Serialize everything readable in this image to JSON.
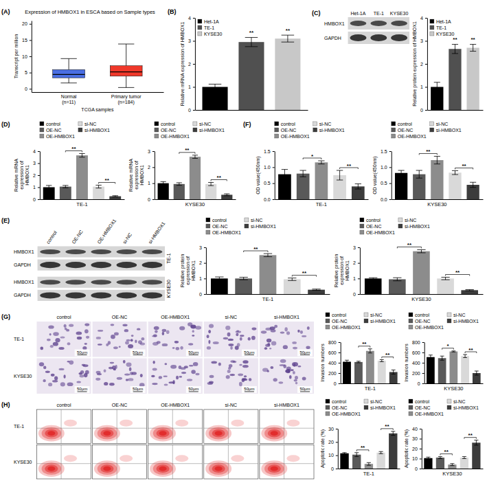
{
  "chart_data": [
    {
      "panel": "(A)",
      "type": "box",
      "title": "Expression of HMBOX1 in ESCA based on Sample types",
      "x_label": "TCGA samples",
      "y_label": "Transcript per million",
      "categories": [
        "Normal (n=11)",
        "Primary tumor (n=184)"
      ],
      "boxes": [
        {
          "min": 1.8,
          "q1": 3.4,
          "median": 4.4,
          "q3": 5.9,
          "max": 9.3
        },
        {
          "min": 0.4,
          "q1": 3.9,
          "median": 5.2,
          "q3": 7.1,
          "max": 13.8
        }
      ],
      "colors": [
        "#4a6fe3",
        "#f0382a"
      ],
      "ylim": [
        -1,
        21
      ],
      "yticks": [
        0,
        5,
        10,
        15,
        20
      ]
    },
    {
      "panel": "(B)",
      "type": "bar",
      "y_label": "Relative mRNA expression of HMBOX1",
      "categories": [
        "Het-1A",
        "TE-1",
        "KYSE30"
      ],
      "values": [
        1,
        2.95,
        3.1
      ],
      "error": [
        0.12,
        0.2,
        0.15
      ],
      "colors": [
        "#000000",
        "#505050",
        "#c8c8c8"
      ],
      "ylim": [
        0,
        4
      ],
      "yticks": [
        0,
        1,
        2,
        3,
        4
      ],
      "legend": "top-left",
      "tick_labels": "y",
      "significance": [
        {
          "bars": [
            1
          ],
          "label": "**"
        },
        {
          "bars": [
            2
          ],
          "label": "**"
        }
      ]
    },
    {
      "type": "bar",
      "y_label": "Relative protein expression of HMBOX1",
      "categories": [
        "Het-1A",
        "TE-1",
        "KYSE30"
      ],
      "values": [
        1,
        2.65,
        2.7
      ],
      "error": [
        0.2,
        0.2,
        0.15
      ],
      "colors": [
        "#000000",
        "#505050",
        "#c8c8c8"
      ],
      "ylim": [
        0,
        4
      ],
      "yticks": [
        0,
        1,
        2,
        3,
        4
      ],
      "legend": "top-left",
      "tick_labels": "y",
      "significance": [
        {
          "bars": [
            1
          ],
          "label": "**"
        },
        {
          "bars": [
            2
          ],
          "label": "**"
        }
      ]
    },
    {
      "panel": "(D)",
      "type": "bar",
      "y_label": "Relative mRNA expression of HMBOX1",
      "x_label": "TE-1",
      "categories": [
        "control",
        "OE-NC",
        "OE-HMBOX1",
        "si-NC",
        "si-HMBOX1"
      ],
      "values": [
        1,
        1.05,
        3.65,
        1.05,
        0.25
      ],
      "error": [
        0.15,
        0.1,
        0.15,
        0.12,
        0.05
      ],
      "colors": [
        "#000000",
        "#595959",
        "#8c8c8c",
        "#d9d9d9",
        "#3c3c3c"
      ],
      "ylim": [
        0,
        4
      ],
      "yticks": [
        0,
        1,
        2,
        3,
        4
      ],
      "legend": "top",
      "tick_labels": "y",
      "significance": [
        {
          "bars": [
            1,
            2
          ],
          "label": "**"
        },
        {
          "bars": [
            3,
            4
          ],
          "label": "**"
        }
      ]
    },
    {
      "type": "bar",
      "y_label": "Relative mRNA expression of HMBOX1",
      "x_label": "KYSE30",
      "categories": [
        "control",
        "OE-NC",
        "OE-HMBOX1",
        "si-NC",
        "si-HMBOX1"
      ],
      "values": [
        1,
        0.95,
        2.65,
        0.95,
        0.28
      ],
      "error": [
        0.1,
        0.08,
        0.1,
        0.1,
        0.06
      ],
      "colors": [
        "#000000",
        "#595959",
        "#8c8c8c",
        "#d9d9d9",
        "#3c3c3c"
      ],
      "ylim": [
        0,
        3
      ],
      "yticks": [
        0,
        1,
        2,
        3
      ],
      "legend": "top",
      "tick_labels": "y",
      "significance": [
        {
          "bars": [
            1,
            2
          ],
          "label": "**"
        },
        {
          "bars": [
            3,
            4
          ],
          "label": "**"
        }
      ]
    },
    {
      "panel": "(F)",
      "type": "bar",
      "y_label": "OD value(450nm)",
      "x_label": "TE-1",
      "categories": [
        "control",
        "OE-NC",
        "OE-HMBOX1",
        "si-NC",
        "si-HMBOX1"
      ],
      "values": [
        0.78,
        0.8,
        1.15,
        0.75,
        0.4
      ],
      "error": [
        0.15,
        0.1,
        0.05,
        0.15,
        0.08
      ],
      "colors": [
        "#000000",
        "#595959",
        "#8c8c8c",
        "#d9d9d9",
        "#3c3c3c"
      ],
      "ylim": [
        0,
        1.5
      ],
      "yticks": [
        {
          "value": 0,
          "label": "0.0"
        },
        0.5,
        {
          "value": 1,
          "label": "1.0"
        },
        1.5
      ],
      "legend": "top",
      "tick_labels": "y",
      "significance": [
        {
          "bars": [
            1,
            2
          ],
          "label": "*"
        },
        {
          "bars": [
            3,
            4
          ],
          "label": "**"
        }
      ]
    },
    {
      "type": "bar",
      "y_label": "OD value(450nm)",
      "x_label": "KYSE30",
      "categories": [
        "control",
        "OE-NC",
        "OE-HMBOX1",
        "si-NC",
        "si-HMBOX1"
      ],
      "values": [
        0.82,
        0.78,
        1.22,
        0.83,
        0.45
      ],
      "error": [
        0.08,
        0.12,
        0.12,
        0.06,
        0.08
      ],
      "colors": [
        "#000000",
        "#595959",
        "#8c8c8c",
        "#d9d9d9",
        "#3c3c3c"
      ],
      "ylim": [
        0,
        1.5
      ],
      "yticks": [
        {
          "value": 0,
          "label": "0.0"
        },
        0.5,
        {
          "value": 1,
          "label": "1.0"
        },
        1.5
      ],
      "legend": "top",
      "tick_labels": "y",
      "significance": [
        {
          "bars": [
            1,
            2
          ],
          "label": "**"
        },
        {
          "bars": [
            3,
            4
          ],
          "label": "**"
        }
      ]
    },
    {
      "type": "bar",
      "y_label": "Relative protein expression of HMBOX1",
      "x_label": "TE-1",
      "categories": [
        "control",
        "OE-NC",
        "OE-HMBOX1",
        "si-NC",
        "si-HMBOX1"
      ],
      "values": [
        1,
        1,
        2.5,
        0.95,
        0.28
      ],
      "error": [
        0.1,
        0.08,
        0.1,
        0.08,
        0.04
      ],
      "colors": [
        "#000000",
        "#595959",
        "#8c8c8c",
        "#d9d9d9",
        "#3c3c3c"
      ],
      "ylim": [
        0,
        3
      ],
      "yticks": [
        0,
        1,
        2,
        3
      ],
      "legend": "top",
      "tick_labels": "y",
      "significance": [
        {
          "bars": [
            1,
            2
          ],
          "label": "**"
        },
        {
          "bars": [
            3,
            4
          ],
          "label": "**"
        }
      ]
    },
    {
      "type": "bar",
      "y_label": "Relative protein expression of HMBOX1",
      "x_label": "KYSE30",
      "categories": [
        "control",
        "OE-NC",
        "OE-HMBOX1",
        "si-NC",
        "si-HMBOX1"
      ],
      "values": [
        1,
        0.95,
        2.75,
        1,
        0.25
      ],
      "error": [
        0.05,
        0.1,
        0.1,
        0.08,
        0.04
      ],
      "colors": [
        "#000000",
        "#595959",
        "#8c8c8c",
        "#d9d9d9",
        "#3c3c3c"
      ],
      "ylim": [
        0,
        3
      ],
      "yticks": [
        0,
        1,
        2,
        3
      ],
      "legend": "top",
      "tick_labels": "y",
      "significance": [
        {
          "bars": [
            1,
            2
          ],
          "label": "**"
        },
        {
          "bars": [
            3,
            4
          ],
          "label": "**"
        }
      ]
    },
    {
      "type": "bar",
      "y_label": "Invasion numbers",
      "x_label": "TE-1",
      "categories": [
        "control",
        "OE-NC",
        "OE-HMBOX1",
        "si-NC",
        "si-HMBOX1"
      ],
      "values": [
        420,
        415,
        630,
        440,
        220
      ],
      "error": [
        30,
        15,
        40,
        20,
        40
      ],
      "colors": [
        "#000000",
        "#595959",
        "#8c8c8c",
        "#d9d9d9",
        "#3c3c3c"
      ],
      "ylim": [
        0,
        800
      ],
      "yticks": [
        0,
        200,
        400,
        600,
        800
      ],
      "legend": "top",
      "tick_labels": "y",
      "significance": [
        {
          "bars": [
            1,
            2
          ],
          "label": "**"
        },
        {
          "bars": [
            3,
            4
          ],
          "label": "**"
        }
      ]
    },
    {
      "type": "bar",
      "y_label": "Invasion numbers",
      "x_label": "KYSE30",
      "categories": [
        "control",
        "OE-NC",
        "OE-HMBOX1",
        "si-NC",
        "si-HMBOX1"
      ],
      "values": [
        510,
        490,
        620,
        530,
        200
      ],
      "error": [
        40,
        40,
        10,
        30,
        40
      ],
      "colors": [
        "#000000",
        "#595959",
        "#8c8c8c",
        "#d9d9d9",
        "#3c3c3c"
      ],
      "ylim": [
        0,
        800
      ],
      "yticks": [
        0,
        200,
        400,
        600,
        800
      ],
      "legend": "top",
      "tick_labels": "y",
      "significance": [
        {
          "bars": [
            1,
            2
          ],
          "label": "*"
        },
        {
          "bars": [
            3,
            4
          ],
          "label": "**"
        }
      ]
    },
    {
      "type": "bar",
      "y_label": "Apoptotic rate (%)",
      "x_label": "TE-1",
      "categories": [
        "control",
        "OE-NC",
        "OE-HMBOX1",
        "si-NC",
        "si-HMBOX1"
      ],
      "values": [
        11.5,
        10.5,
        3.5,
        12,
        26.5
      ],
      "error": [
        0.5,
        1.5,
        1,
        0.8,
        1.5
      ],
      "colors": [
        "#000000",
        "#595959",
        "#8c8c8c",
        "#d9d9d9",
        "#3c3c3c"
      ],
      "ylim": [
        0,
        30
      ],
      "yticks": [
        0,
        10,
        20,
        30
      ],
      "legend": "top",
      "tick_labels": "y",
      "significance": [
        {
          "bars": [
            1,
            2
          ],
          "label": "**"
        },
        {
          "bars": [
            3,
            4
          ],
          "label": "**"
        }
      ]
    },
    {
      "type": "bar",
      "y_label": "Apoptotic rate (%)",
      "x_label": "KYSE30",
      "categories": [
        "control",
        "OE-NC",
        "OE-HMBOX1",
        "si-NC",
        "si-HMBOX1"
      ],
      "values": [
        10.5,
        11,
        4,
        11,
        26
      ],
      "error": [
        1,
        1,
        1,
        1,
        2.5
      ],
      "colors": [
        "#000000",
        "#595959",
        "#8c8c8c",
        "#d9d9d9",
        "#3c3c3c"
      ],
      "ylim": [
        0,
        40
      ],
      "yticks": [
        0,
        10,
        20,
        30,
        40
      ],
      "legend": "top",
      "tick_labels": "y",
      "significance": [
        {
          "bars": [
            1,
            2
          ],
          "label": "**"
        },
        {
          "bars": [
            3,
            4
          ],
          "label": "**"
        }
      ]
    }
  ],
  "blots": [
    {
      "panel": "(C)",
      "lanes": [
        "Het-1A",
        "TE-1",
        "KYSE30"
      ],
      "rows": [
        "HMBOX1",
        "GAPDH"
      ]
    },
    {
      "panel": "(E)",
      "lanes": [
        "control",
        "OE-NC",
        "OE-HMBOX1",
        "si-NC",
        "si-HMBOX1"
      ],
      "groups": [
        "TE-1",
        "KYSE30"
      ],
      "rows": [
        "HMBOX1",
        "GAPDH"
      ]
    }
  ],
  "micrographs": {
    "panel": "(G)",
    "columns": [
      "control",
      "OE-NC",
      "OE-HMBOX1",
      "si-NC",
      "si-HMBOX1"
    ],
    "rows": [
      "TE-1",
      "KYSE30"
    ],
    "scale_label": "50μm"
  },
  "flow_plots": {
    "panel": "(H)",
    "columns": [
      "control",
      "OE-NC",
      "OE-HMBOX1",
      "si-NC",
      "si-HMBOX1"
    ],
    "rows": [
      "TE-1",
      "KYSE30"
    ]
  }
}
